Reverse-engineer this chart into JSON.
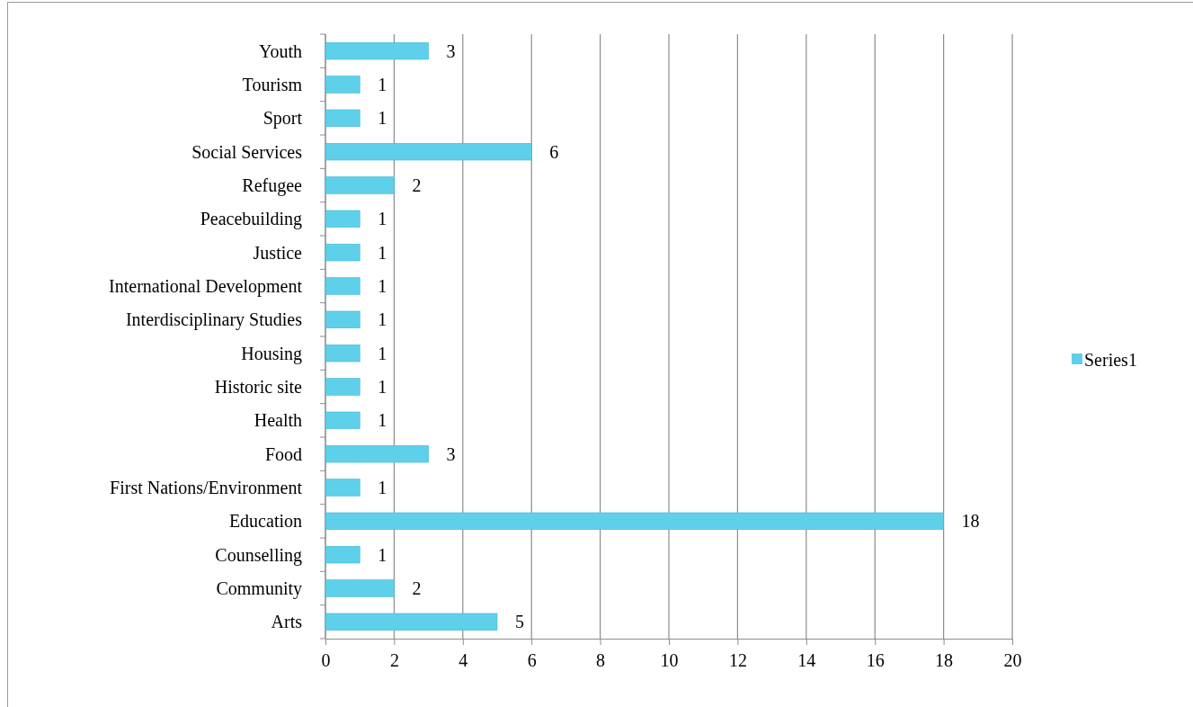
{
  "chart_data": {
    "type": "bar",
    "orientation": "horizontal",
    "categories": [
      "Youth",
      "Tourism",
      "Sport",
      "Social Services",
      "Refugee",
      "Peacebuilding",
      "Justice",
      "International Development",
      "Interdisciplinary Studies",
      "Housing",
      "Historic site",
      "Health",
      "Food",
      "First Nations/Environment",
      "Education",
      "Counselling",
      "Community",
      "Arts"
    ],
    "series": [
      {
        "name": "Series1",
        "color": "#5fd0ea",
        "values": [
          3,
          1,
          1,
          6,
          2,
          1,
          1,
          1,
          1,
          1,
          1,
          1,
          3,
          1,
          18,
          1,
          2,
          5
        ]
      }
    ],
    "xlim": [
      0,
      20
    ],
    "xticks": [
      0,
      2,
      4,
      6,
      8,
      10,
      12,
      14,
      16,
      18,
      20
    ],
    "grid": "x",
    "legend": "right",
    "data_labels": true
  }
}
